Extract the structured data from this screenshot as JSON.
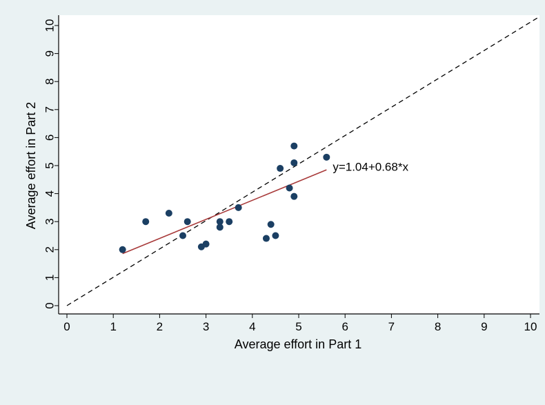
{
  "chart_data": {
    "type": "scatter",
    "xlabel": "Average effort in Part 1",
    "ylabel": "Average effort in Part 2",
    "xlim": [
      0,
      10
    ],
    "ylim": [
      0,
      10
    ],
    "x_ticks": [
      "0",
      "1",
      "2",
      "3",
      "4",
      "5",
      "6",
      "7",
      "8",
      "9",
      "10"
    ],
    "y_ticks": [
      "0",
      "1",
      "2",
      "3",
      "4",
      "5",
      "6",
      "7",
      "8",
      "9",
      "10"
    ],
    "grid": false,
    "points": [
      {
        "x": 1.2,
        "y": 2.0
      },
      {
        "x": 1.7,
        "y": 3.0
      },
      {
        "x": 2.2,
        "y": 3.3
      },
      {
        "x": 2.5,
        "y": 2.5
      },
      {
        "x": 2.6,
        "y": 3.0
      },
      {
        "x": 2.9,
        "y": 2.1
      },
      {
        "x": 3.0,
        "y": 2.2
      },
      {
        "x": 3.3,
        "y": 3.0
      },
      {
        "x": 3.3,
        "y": 2.8
      },
      {
        "x": 3.5,
        "y": 3.0
      },
      {
        "x": 3.7,
        "y": 3.5
      },
      {
        "x": 4.3,
        "y": 2.4
      },
      {
        "x": 4.4,
        "y": 2.9
      },
      {
        "x": 4.5,
        "y": 2.5
      },
      {
        "x": 4.6,
        "y": 4.9
      },
      {
        "x": 4.8,
        "y": 4.2
      },
      {
        "x": 4.9,
        "y": 5.7
      },
      {
        "x": 4.9,
        "y": 5.1
      },
      {
        "x": 4.9,
        "y": 3.9
      },
      {
        "x": 5.6,
        "y": 5.3
      }
    ],
    "reference_line": {
      "from": [
        0,
        0
      ],
      "to": [
        10,
        10
      ],
      "style": "dashed"
    },
    "fit_line": {
      "intercept": 1.04,
      "slope": 0.68,
      "x_range": [
        1.2,
        5.6
      ],
      "label": "y=1.04+0.68*x"
    },
    "colors": {
      "point": "#1b3f63",
      "fit_line": "#a83a3a",
      "reference_line": "#000000",
      "plot_background": "#ffffff",
      "outer_background": "#eaf2f3"
    }
  }
}
